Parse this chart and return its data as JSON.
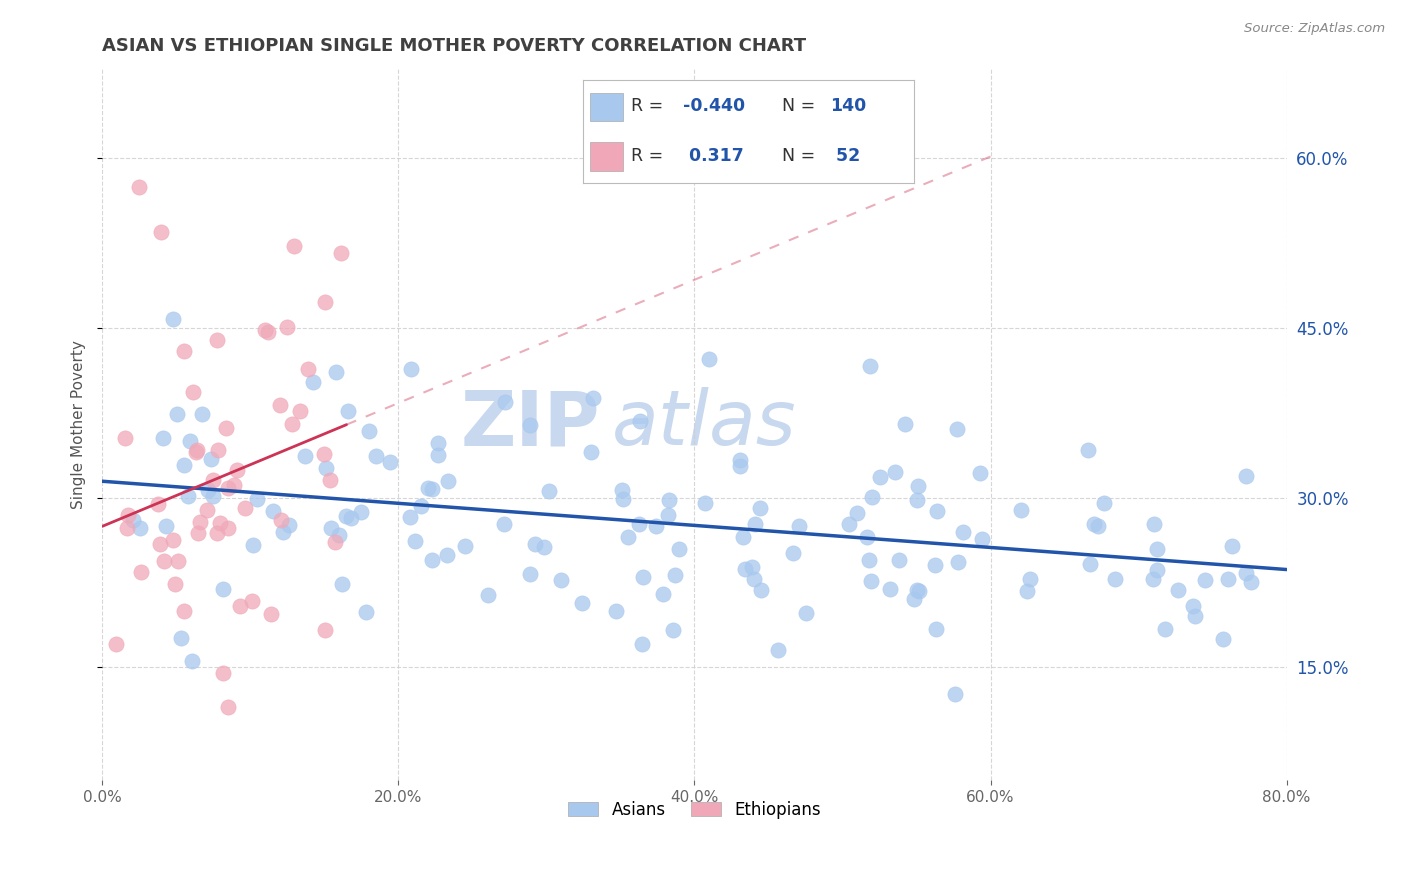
{
  "title": "ASIAN VS ETHIOPIAN SINGLE MOTHER POVERTY CORRELATION CHART",
  "source": "Source: ZipAtlas.com",
  "ylabel": "Single Mother Poverty",
  "xlim": [
    0.0,
    0.8
  ],
  "ylim": [
    0.05,
    0.68
  ],
  "xtick_vals": [
    0.0,
    0.2,
    0.4,
    0.6,
    0.8
  ],
  "ytick_vals": [
    0.15,
    0.3,
    0.45,
    0.6
  ],
  "asian_color": "#A8C8EE",
  "ethiopian_color": "#F0A8B8",
  "asian_line_color": "#2255AA",
  "ethiopian_line_color": "#CC3355",
  "asian_R": -0.44,
  "asian_N": 140,
  "ethiopian_R": 0.317,
  "ethiopian_N": 52,
  "watermark_zip": "ZIP",
  "watermark_atlas": "atlas",
  "watermark_color": "#C8D8EE",
  "background_color": "#FFFFFF",
  "grid_color": "#CCCCCC",
  "title_color": "#404040",
  "title_fontsize": 13,
  "right_tick_color": "#2255AA",
  "legend_r_color": "#2255AA",
  "legend_n_color": "#2255AA"
}
